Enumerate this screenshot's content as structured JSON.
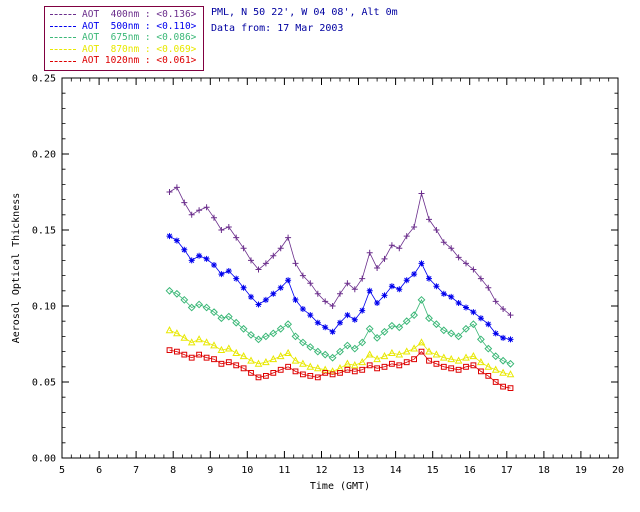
{
  "header": {
    "station": "PML, N 50 22', W 04 08', Alt 0m",
    "date_line": "Data from: 17 Mar 2003"
  },
  "legend": {
    "border_color": "#800040",
    "entries": [
      {
        "label": "AOT  400nm : <0.136>"
      },
      {
        "label": "AOT  500nm : <0.110>"
      },
      {
        "label": "AOT  675nm : <0.086>"
      },
      {
        "label": "AOT  870nm : <0.069>"
      },
      {
        "label": "AOT 1020nm : <0.061>"
      }
    ]
  },
  "chart_data": {
    "type": "line",
    "title": "",
    "xlabel": "Time (GMT)",
    "ylabel": "Aerosol Optical Thickness",
    "xlim": [
      5,
      20
    ],
    "ylim": [
      0,
      0.25
    ],
    "xticks": [
      5,
      6,
      7,
      8,
      9,
      10,
      11,
      12,
      13,
      14,
      15,
      16,
      17,
      18,
      19,
      20
    ],
    "yticks": [
      0.0,
      0.05,
      0.1,
      0.15,
      0.2,
      0.25
    ],
    "grid": false,
    "legend_position": "top-left-outside",
    "x": [
      7.9,
      8.1,
      8.3,
      8.5,
      8.7,
      8.9,
      9.1,
      9.3,
      9.5,
      9.7,
      9.9,
      10.1,
      10.3,
      10.5,
      10.7,
      10.9,
      11.1,
      11.3,
      11.5,
      11.7,
      11.9,
      12.1,
      12.3,
      12.5,
      12.7,
      12.9,
      13.1,
      13.3,
      13.5,
      13.7,
      13.9,
      14.1,
      14.3,
      14.5,
      14.7,
      14.9,
      15.1,
      15.3,
      15.5,
      15.7,
      15.9,
      16.1,
      16.3,
      16.5,
      16.7,
      16.9,
      17.1
    ],
    "series": [
      {
        "name": "AOT 400nm",
        "mean_label": "<0.136>",
        "color": "#6b2e8c",
        "marker": "plus",
        "values": [
          0.175,
          0.178,
          0.168,
          0.16,
          0.163,
          0.165,
          0.158,
          0.15,
          0.152,
          0.145,
          0.138,
          0.13,
          0.124,
          0.128,
          0.133,
          0.138,
          0.145,
          0.128,
          0.12,
          0.115,
          0.108,
          0.103,
          0.1,
          0.108,
          0.115,
          0.111,
          0.118,
          0.135,
          0.125,
          0.131,
          0.14,
          0.138,
          0.146,
          0.152,
          0.174,
          0.157,
          0.15,
          0.142,
          0.138,
          0.132,
          0.128,
          0.124,
          0.118,
          0.112,
          0.103,
          0.098,
          0.094
        ]
      },
      {
        "name": "AOT 500nm",
        "mean_label": "<0.110>",
        "color": "#0000ee",
        "marker": "asterisk",
        "values": [
          0.146,
          0.143,
          0.137,
          0.13,
          0.133,
          0.131,
          0.127,
          0.121,
          0.123,
          0.118,
          0.112,
          0.106,
          0.101,
          0.104,
          0.108,
          0.112,
          0.117,
          0.104,
          0.098,
          0.094,
          0.089,
          0.086,
          0.083,
          0.089,
          0.094,
          0.091,
          0.097,
          0.11,
          0.102,
          0.107,
          0.113,
          0.111,
          0.117,
          0.121,
          0.128,
          0.118,
          0.113,
          0.108,
          0.106,
          0.102,
          0.099,
          0.096,
          0.092,
          0.088,
          0.082,
          0.079,
          0.078
        ]
      },
      {
        "name": "AOT 675nm",
        "mean_label": "<0.086>",
        "color": "#3cb878",
        "marker": "diamond",
        "values": [
          0.11,
          0.108,
          0.104,
          0.099,
          0.101,
          0.099,
          0.096,
          0.092,
          0.093,
          0.089,
          0.085,
          0.081,
          0.078,
          0.08,
          0.082,
          0.085,
          0.088,
          0.08,
          0.076,
          0.073,
          0.07,
          0.068,
          0.066,
          0.07,
          0.074,
          0.072,
          0.076,
          0.085,
          0.079,
          0.083,
          0.087,
          0.086,
          0.09,
          0.094,
          0.104,
          0.092,
          0.088,
          0.084,
          0.082,
          0.08,
          0.085,
          0.088,
          0.078,
          0.072,
          0.067,
          0.064,
          0.062
        ]
      },
      {
        "name": "AOT 870nm",
        "mean_label": "<0.069>",
        "color": "#e8e800",
        "marker": "triangle",
        "values": [
          0.084,
          0.082,
          0.079,
          0.076,
          0.078,
          0.076,
          0.074,
          0.071,
          0.072,
          0.069,
          0.067,
          0.064,
          0.062,
          0.063,
          0.065,
          0.067,
          0.069,
          0.064,
          0.062,
          0.06,
          0.059,
          0.058,
          0.057,
          0.059,
          0.062,
          0.061,
          0.063,
          0.068,
          0.065,
          0.067,
          0.069,
          0.068,
          0.07,
          0.072,
          0.076,
          0.07,
          0.068,
          0.066,
          0.065,
          0.064,
          0.066,
          0.067,
          0.063,
          0.06,
          0.058,
          0.056,
          0.055
        ]
      },
      {
        "name": "AOT 1020nm",
        "mean_label": "<0.061>",
        "color": "#dd0000",
        "marker": "square",
        "values": [
          0.071,
          0.07,
          0.068,
          0.066,
          0.068,
          0.066,
          0.065,
          0.062,
          0.063,
          0.061,
          0.059,
          0.056,
          0.053,
          0.054,
          0.056,
          0.058,
          0.06,
          0.057,
          0.055,
          0.054,
          0.053,
          0.056,
          0.055,
          0.056,
          0.058,
          0.057,
          0.058,
          0.061,
          0.059,
          0.06,
          0.062,
          0.061,
          0.063,
          0.065,
          0.07,
          0.064,
          0.062,
          0.06,
          0.059,
          0.058,
          0.06,
          0.061,
          0.057,
          0.054,
          0.05,
          0.047,
          0.046
        ]
      }
    ]
  }
}
